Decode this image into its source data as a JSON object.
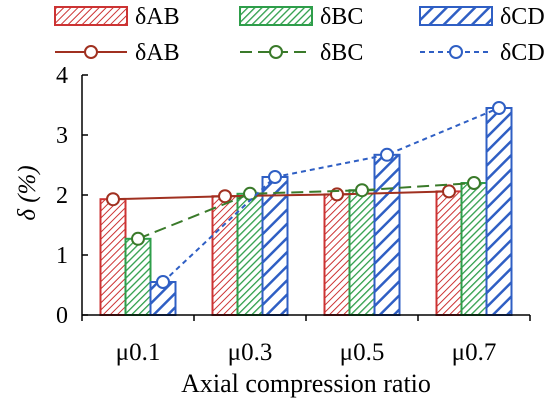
{
  "chart_data": {
    "type": "bar",
    "title": "",
    "xlabel": "Axial compression ratio",
    "ylabel": "δ (%)",
    "categories": [
      "μ0.1",
      "μ0.3",
      "μ0.5",
      "μ0.7"
    ],
    "ylim": [
      0,
      4
    ],
    "yticks": [
      "0",
      "1",
      "2",
      "3",
      "4"
    ],
    "grid": false,
    "legend_position": "top",
    "bar_series": [
      {
        "name": "δAB",
        "values": [
          1.93,
          1.98,
          2.01,
          2.06
        ],
        "color": "#cc3333",
        "pattern": "dense-diagonal-red"
      },
      {
        "name": "δBC",
        "values": [
          1.27,
          2.02,
          2.08,
          2.2
        ],
        "color": "#2e9e4a",
        "pattern": "dense-diagonal-green"
      },
      {
        "name": "δCD",
        "values": [
          0.55,
          2.3,
          2.67,
          3.45
        ],
        "color": "#2f5fc4",
        "pattern": "wide-diagonal-blue"
      }
    ],
    "line_series": [
      {
        "name": "δAB",
        "values": [
          1.93,
          1.98,
          2.01,
          2.06
        ],
        "color": "#a03020",
        "style": "solid",
        "marker": "circle"
      },
      {
        "name": "δBC",
        "values": [
          1.27,
          2.02,
          2.08,
          2.2
        ],
        "color": "#3a7a2a",
        "style": "long-dash",
        "marker": "circle"
      },
      {
        "name": "δCD",
        "values": [
          0.55,
          2.3,
          2.67,
          3.45
        ],
        "color": "#2f5fc4",
        "style": "short-dash",
        "marker": "circle"
      }
    ]
  }
}
